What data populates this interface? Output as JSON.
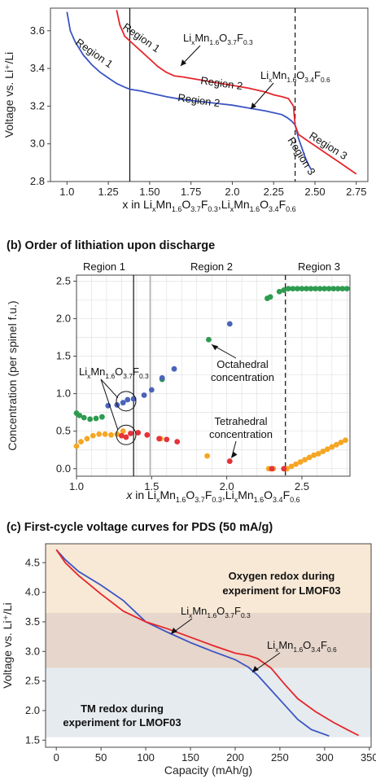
{
  "panels": {
    "b_title": "(b) Order of lithiation upon discharge",
    "c_title": "(c) First-cycle voltage curves for PDS (50 mA/g)"
  },
  "chart_data": [
    {
      "type": "line",
      "panel": "a",
      "ylabel": "Voltage vs. Li⁺/Li",
      "xlabel": "x in LixMn1.6O3.7F0.3,LixMn1.6O3.4F0.6",
      "xlim": [
        0.9,
        2.82
      ],
      "ylim": [
        2.8,
        3.72
      ],
      "xticks": [
        1.0,
        1.25,
        1.5,
        1.75,
        2.0,
        2.25,
        2.5,
        2.75
      ],
      "yticks": [
        2.8,
        3.0,
        3.2,
        3.4,
        3.6
      ],
      "tick_labels_x": [
        "1.0",
        "1.25",
        "1.50",
        "1.75",
        "2.0",
        "2.25",
        "2.50",
        "2.75"
      ],
      "tick_labels_y": [
        "2.8",
        "3.0",
        "3.2",
        "3.4",
        "3.6"
      ],
      "vlines": [
        {
          "x": 1.38,
          "style": "solid"
        },
        {
          "x": 2.38,
          "style": "dashed"
        }
      ],
      "series": [
        {
          "name": "LixMn1.6O3.7F0.3",
          "color": "#3b55c4",
          "x": [
            1.0,
            1.02,
            1.05,
            1.1,
            1.15,
            1.2,
            1.25,
            1.3,
            1.35,
            1.38,
            1.45,
            1.5,
            1.6,
            1.7,
            1.8,
            1.9,
            2.0,
            2.1,
            2.2,
            2.25,
            2.3,
            2.33,
            2.36,
            2.38,
            2.4,
            2.42,
            2.44,
            2.46,
            2.48
          ],
          "y": [
            3.7,
            3.6,
            3.54,
            3.47,
            3.42,
            3.38,
            3.35,
            3.32,
            3.3,
            3.29,
            3.28,
            3.27,
            3.25,
            3.235,
            3.225,
            3.215,
            3.205,
            3.19,
            3.175,
            3.165,
            3.155,
            3.14,
            3.12,
            3.1,
            3.03,
            2.98,
            2.93,
            2.89,
            2.86
          ]
        },
        {
          "name": "LixMn1.6O3.4F0.6",
          "color": "#e5262b",
          "x": [
            1.3,
            1.32,
            1.35,
            1.4,
            1.45,
            1.5,
            1.55,
            1.6,
            1.65,
            1.7,
            1.8,
            1.9,
            2.0,
            2.1,
            2.2,
            2.25,
            2.3,
            2.34,
            2.37,
            2.38,
            2.4,
            2.45,
            2.5,
            2.55,
            2.6,
            2.65,
            2.7,
            2.75
          ],
          "y": [
            3.71,
            3.63,
            3.57,
            3.53,
            3.49,
            3.45,
            3.41,
            3.38,
            3.36,
            3.355,
            3.34,
            3.325,
            3.31,
            3.295,
            3.275,
            3.26,
            3.25,
            3.24,
            3.2,
            3.1,
            3.05,
            3.02,
            2.99,
            2.96,
            2.93,
            2.9,
            2.87,
            2.84
          ]
        }
      ],
      "annotations": [
        "Region 1",
        "Region 1",
        "Region 2",
        "Region 2",
        "Region 3",
        "Region 3"
      ],
      "formula_labels": [
        {
          "base": "Li",
          "s1": "x",
          "m": "Mn",
          "s2": "1.6",
          "o": "O",
          "s3": "3.7",
          "f": "F",
          "s4": "0.3"
        },
        {
          "base": "Li",
          "s1": "x",
          "m": "Mn",
          "s2": "1.6",
          "o": "O",
          "s3": "3.4",
          "f": "F",
          "s4": "0.6"
        }
      ]
    },
    {
      "type": "scatter",
      "panel": "b",
      "ylabel": "Concentration (per spinel f.u.)",
      "xlabel": "x in LixMn1.6O3.7F0.3,LixMn1.6O3.4F0.6",
      "xlim": [
        1.0,
        2.82
      ],
      "ylim": [
        -0.1,
        2.58
      ],
      "xticks": [
        1.0,
        1.5,
        2.0,
        2.5
      ],
      "yticks": [
        0.0,
        0.5,
        1.0,
        1.5,
        2.0,
        2.5
      ],
      "tick_labels_x": [
        "1.0",
        "1.5",
        "2.0",
        "2.5"
      ],
      "tick_labels_y": [
        "0.0",
        "0.5",
        "1.0",
        "1.5",
        "2.0",
        "2.5"
      ],
      "grid": true,
      "region_labels": [
        "Region 1",
        "Region 2",
        "Region 3"
      ],
      "vlines": [
        {
          "x": 1.38,
          "style": "solid"
        },
        {
          "x": 1.49,
          "style": "solid-gray"
        },
        {
          "x": 2.39,
          "style": "dashed"
        }
      ],
      "series": [
        {
          "name": "octahedral-green",
          "color": "#2e9b4f",
          "x": [
            1.0,
            1.02,
            1.05,
            1.09,
            1.13,
            1.17,
            1.57,
            1.88,
            2.27,
            2.29,
            2.35,
            2.38,
            2.41,
            2.44,
            2.47,
            2.5,
            2.53,
            2.56,
            2.59,
            2.62,
            2.65,
            2.68,
            2.71,
            2.74,
            2.77,
            2.8
          ],
          "y": [
            0.74,
            0.71,
            0.68,
            0.66,
            0.67,
            0.69,
            1.19,
            1.72,
            2.27,
            2.29,
            2.36,
            2.38,
            2.4,
            2.4,
            2.4,
            2.4,
            2.4,
            2.4,
            2.4,
            2.4,
            2.4,
            2.4,
            2.4,
            2.4,
            2.4,
            2.4
          ]
        },
        {
          "name": "octahedral-blue",
          "color": "#4b63b8",
          "x": [
            1.21,
            1.27,
            1.31,
            1.34,
            1.38,
            1.45,
            1.5,
            1.57,
            1.65,
            2.02
          ],
          "y": [
            0.84,
            0.85,
            0.88,
            0.92,
            0.93,
            0.98,
            1.05,
            1.21,
            1.33,
            1.93
          ]
        },
        {
          "name": "tetrahedral-orange",
          "color": "#f5a623",
          "x": [
            1.0,
            1.03,
            1.07,
            1.11,
            1.15,
            1.19,
            1.23,
            1.27,
            1.31,
            1.56,
            1.87,
            2.28,
            2.31,
            2.4,
            2.43,
            2.46,
            2.49,
            2.52,
            2.55,
            2.58,
            2.61,
            2.64,
            2.67,
            2.7,
            2.73,
            2.76,
            2.79
          ],
          "y": [
            0.3,
            0.36,
            0.4,
            0.44,
            0.46,
            0.46,
            0.45,
            0.46,
            0.5,
            0.4,
            0.17,
            0.0,
            0.0,
            0.0,
            0.03,
            0.06,
            0.09,
            0.12,
            0.15,
            0.18,
            0.2,
            0.23,
            0.26,
            0.29,
            0.32,
            0.35,
            0.38
          ]
        },
        {
          "name": "tetrahedral-red",
          "color": "#e5333a",
          "x": [
            1.3,
            1.33,
            1.36,
            1.41,
            1.47,
            1.55,
            1.6,
            1.67,
            2.02,
            2.3,
            2.38
          ],
          "y": [
            0.44,
            0.42,
            0.47,
            0.48,
            0.45,
            0.4,
            0.39,
            0.36,
            0.1,
            0.0,
            0.0
          ]
        }
      ],
      "annotations": [
        "Octahedral",
        "concentration",
        "Tetrahedral",
        "concentration"
      ],
      "formula_label": {
        "base": "Li",
        "s1": "x",
        "m": "Mn",
        "s2": "1.6",
        "o": "O",
        "s3": "3.7",
        "f": "F",
        "s4": "0.3"
      }
    },
    {
      "type": "line",
      "panel": "c",
      "ylabel": "Voltage vs. Li⁺/Li",
      "xlabel": "Capacity (mAh/g)",
      "xlim": [
        -12,
        352
      ],
      "ylim": [
        1.38,
        4.82
      ],
      "xticks": [
        0,
        50,
        100,
        150,
        200,
        250,
        300,
        350
      ],
      "yticks": [
        1.5,
        2.0,
        2.5,
        3.0,
        3.5,
        4.0,
        4.5
      ],
      "tick_labels_x": [
        "0",
        "50",
        "100",
        "150",
        "200",
        "250",
        "300",
        "350"
      ],
      "tick_labels_y": [
        "1.5",
        "2.0",
        "2.5",
        "3.0",
        "3.5",
        "4.0",
        "4.5"
      ],
      "bands": [
        {
          "y0": 3.65,
          "y1": 4.82,
          "color": "#f8e9d6",
          "label_lines": [
            "Oxygen redox during",
            "experiment for LMOF03"
          ],
          "label_color": "#ee9a2a"
        },
        {
          "y0": 2.72,
          "y1": 3.65,
          "color": "#e6d6cc",
          "label_lines": [],
          "label_color": ""
        },
        {
          "y0": 1.55,
          "y1": 2.72,
          "color": "#e6ebef",
          "label_lines": [
            "TM redox during",
            "experiment for LMOF03"
          ],
          "label_color": "#a4abb5"
        }
      ],
      "series": [
        {
          "name": "LixMn1.6O3.7F0.3",
          "color": "#3b55c4",
          "x": [
            0,
            10,
            25,
            50,
            75,
            100,
            125,
            150,
            175,
            200,
            215,
            225,
            240,
            255,
            270,
            285,
            305
          ],
          "y": [
            4.72,
            4.55,
            4.35,
            4.12,
            3.86,
            3.5,
            3.32,
            3.15,
            3.0,
            2.86,
            2.73,
            2.6,
            2.35,
            2.1,
            1.85,
            1.68,
            1.57
          ]
        },
        {
          "name": "LixMn1.6O3.4F0.6",
          "color": "#e5262b",
          "x": [
            0,
            10,
            25,
            50,
            75,
            100,
            125,
            150,
            175,
            200,
            215,
            225,
            240,
            255,
            270,
            290,
            310,
            325,
            338
          ],
          "y": [
            4.72,
            4.5,
            4.28,
            3.97,
            3.68,
            3.5,
            3.38,
            3.24,
            3.1,
            2.97,
            2.93,
            2.88,
            2.72,
            2.45,
            2.2,
            1.98,
            1.8,
            1.68,
            1.58
          ]
        }
      ],
      "formula_labels": [
        {
          "base": "Li",
          "s1": "x",
          "m": "Mn",
          "s2": "1.6",
          "o": "O",
          "s3": "3.7",
          "f": "F",
          "s4": "0.3"
        },
        {
          "base": "Li",
          "s1": "x",
          "m": "Mn",
          "s2": "1.6",
          "o": "O",
          "s3": "3.4",
          "f": "F",
          "s4": "0.6"
        }
      ]
    }
  ]
}
